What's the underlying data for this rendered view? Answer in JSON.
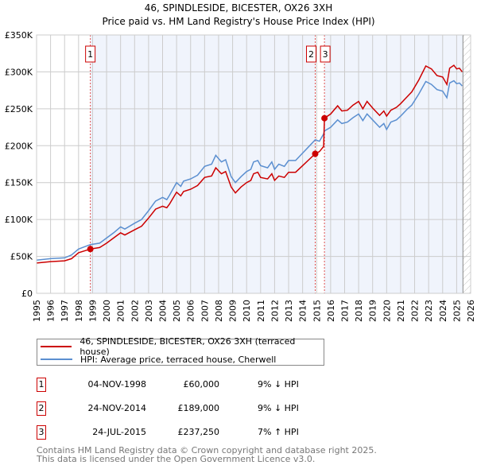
{
  "chart_data": {
    "type": "line",
    "title": "46, SPINDLESIDE, BICESTER, OX26 3XH",
    "subtitle": "Price paid vs. HM Land Registry's House Price Index (HPI)",
    "xlim": [
      1995,
      2026
    ],
    "ylim": [
      0,
      350000
    ],
    "yticks": [
      0,
      50000,
      100000,
      150000,
      200000,
      250000,
      300000,
      350000
    ],
    "ytick_labels": [
      "£0",
      "£50K",
      "£100K",
      "£150K",
      "£200K",
      "£250K",
      "£300K",
      "£350K"
    ],
    "xtick_labels": [
      "1995",
      "1996",
      "1997",
      "1998",
      "1999",
      "2000",
      "2001",
      "2002",
      "2003",
      "2004",
      "2005",
      "2006",
      "2007",
      "2008",
      "2009",
      "2010",
      "2011",
      "2012",
      "2013",
      "2014",
      "2015",
      "2016",
      "2017",
      "2018",
      "2019",
      "2020",
      "2021",
      "2022",
      "2023",
      "2024",
      "2025",
      "2026"
    ],
    "x": [
      1995.0,
      1996.0,
      1997.0,
      1997.5,
      1998.0,
      1998.84,
      1999.5,
      2000.0,
      2000.5,
      2001.0,
      2001.3,
      2002.0,
      2002.5,
      2003.0,
      2003.5,
      2004.0,
      2004.3,
      2004.5,
      2005.0,
      2005.3,
      2005.5,
      2006.0,
      2006.5,
      2007.0,
      2007.5,
      2007.8,
      2008.2,
      2008.5,
      2008.9,
      2009.2,
      2009.6,
      2010.0,
      2010.3,
      2010.5,
      2010.8,
      2011.0,
      2011.5,
      2011.8,
      2012.0,
      2012.3,
      2012.7,
      2013.0,
      2013.5,
      2014.0,
      2014.5,
      2014.9,
      2015.2,
      2015.5,
      2015.56,
      2016.0,
      2016.5,
      2016.8,
      2017.2,
      2017.6,
      2018.0,
      2018.3,
      2018.6,
      2019.0,
      2019.5,
      2019.8,
      2020.0,
      2020.3,
      2020.7,
      2021.0,
      2021.5,
      2021.8,
      2022.3,
      2022.8,
      2023.2,
      2023.6,
      2024.0,
      2024.3,
      2024.5,
      2024.8,
      2025.0,
      2025.2,
      2025.4
    ],
    "series": [
      {
        "name": "46, SPINDLESIDE, BICESTER, OX26 3XH (terraced house)",
        "color": "#cc0000",
        "values": [
          41000,
          43000,
          44000,
          47000,
          55000,
          60000,
          62000,
          68000,
          75000,
          82000,
          79000,
          86000,
          91000,
          102000,
          114000,
          118000,
          116000,
          121000,
          137000,
          132000,
          138000,
          141000,
          146000,
          157000,
          159000,
          170000,
          162000,
          165000,
          144000,
          136000,
          144000,
          150000,
          153000,
          162000,
          164000,
          157000,
          155000,
          162000,
          153000,
          159000,
          157000,
          164000,
          164000,
          173000,
          182000,
          189000,
          192000,
          199000,
          237250,
          243000,
          254000,
          247000,
          248000,
          255000,
          260000,
          250000,
          260000,
          251000,
          241000,
          247000,
          240000,
          248000,
          252000,
          257000,
          267000,
          273000,
          289000,
          308000,
          304000,
          295000,
          293000,
          283000,
          305000,
          309000,
          304000,
          305000,
          300000
        ]
      },
      {
        "name": "HPI: Average price, terraced house, Cherwell",
        "color": "#5b8fd0",
        "values": [
          45000,
          47000,
          48000,
          52000,
          60000,
          66000,
          68000,
          75000,
          82000,
          90000,
          87000,
          95000,
          100000,
          112000,
          125000,
          130000,
          127000,
          133000,
          150000,
          145000,
          152000,
          155000,
          160000,
          172000,
          175000,
          187000,
          178000,
          181000,
          158000,
          150000,
          158000,
          165000,
          168000,
          178000,
          180000,
          173000,
          170000,
          178000,
          168000,
          175000,
          172000,
          180000,
          180000,
          190000,
          200000,
          208000,
          206000,
          216000,
          220000,
          225000,
          235000,
          230000,
          232000,
          238000,
          243000,
          234000,
          243000,
          235000,
          225000,
          230000,
          222000,
          232000,
          235000,
          240000,
          250000,
          255000,
          270000,
          287000,
          283000,
          276000,
          274000,
          265000,
          285000,
          288000,
          284000,
          285000,
          281000
        ]
      }
    ],
    "sales": [
      {
        "label": "1",
        "x": 1998.84,
        "value": 60000
      },
      {
        "label": "2",
        "x": 2014.9,
        "value": 189000
      },
      {
        "label": "3",
        "x": 2015.56,
        "value": 237250
      }
    ],
    "forecast_from": 2025.45
  },
  "legend": {
    "property": "46, SPINDLESIDE, BICESTER, OX26 3XH (terraced house)",
    "hpi": "HPI: Average price, terraced house, Cherwell"
  },
  "transactions": [
    {
      "num": "1",
      "date": "04-NOV-1998",
      "price": "£60,000",
      "change": "9% ↓ HPI"
    },
    {
      "num": "2",
      "date": "24-NOV-2014",
      "price": "£189,000",
      "change": "9% ↓ HPI"
    },
    {
      "num": "3",
      "date": "24-JUL-2015",
      "price": "£237,250",
      "change": "7% ↑ HPI"
    }
  ],
  "footer": {
    "line1": "Contains HM Land Registry data © Crown copyright and database right 2025.",
    "line2": "This data is licensed under the Open Government Licence v3.0."
  }
}
